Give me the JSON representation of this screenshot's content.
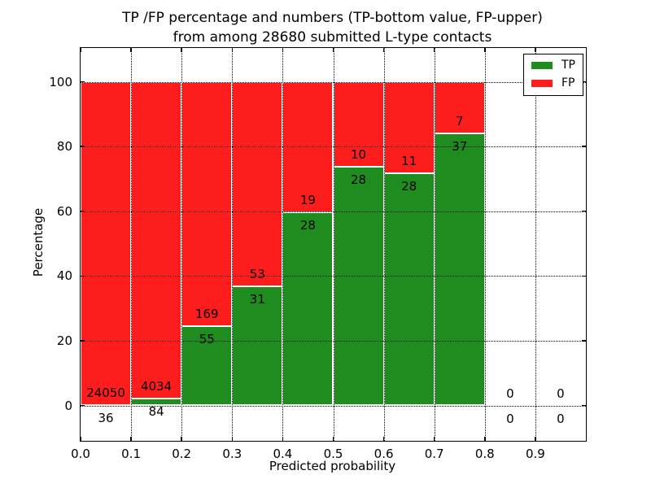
{
  "title": {
    "line1": "TP /FP percentage and numbers (TP-bottom value, FP-upper)",
    "line2": "from among 28680 submitted L-type contacts"
  },
  "axes": {
    "ylabel": "Percentage",
    "xlabel": "Predicted probability",
    "y_ticks": [
      0,
      20,
      40,
      60,
      80,
      100
    ],
    "x_tick_labels": [
      "0.0",
      "0.1",
      "0.2",
      "0.3",
      "0.4",
      "0.5",
      "0.6",
      "0.7",
      "0.8",
      "0.9"
    ]
  },
  "legend": {
    "items": [
      {
        "label": "TP",
        "color": "#1e8c1e"
      },
      {
        "label": "FP",
        "color": "#fd1d1d"
      }
    ]
  },
  "chart_data": {
    "type": "bar",
    "stacked": true,
    "title": "TP /FP percentage and numbers (TP-bottom value, FP-upper) from among 28680 submitted L-type contacts",
    "xlabel": "Predicted probability",
    "ylabel": "Percentage",
    "total_submitted": 28680,
    "bin_edges": [
      0.0,
      0.1,
      0.2,
      0.3,
      0.4,
      0.5,
      0.6,
      0.7,
      0.8,
      0.9,
      1.0
    ],
    "categories": [
      "0.0-0.1",
      "0.1-0.2",
      "0.2-0.3",
      "0.3-0.4",
      "0.4-0.5",
      "0.5-0.6",
      "0.6-0.7",
      "0.7-0.8",
      "0.8-0.9",
      "0.9-1.0"
    ],
    "series": [
      {
        "name": "TP",
        "color": "#1e8c1e",
        "counts": [
          36,
          84,
          55,
          31,
          28,
          28,
          28,
          37,
          0,
          0
        ],
        "percent": [
          0.15,
          2.04,
          24.55,
          36.9,
          59.57,
          73.68,
          71.79,
          84.09,
          0,
          0
        ]
      },
      {
        "name": "FP",
        "color": "#fd1d1d",
        "counts": [
          24050,
          4034,
          169,
          53,
          19,
          10,
          11,
          7,
          0,
          0
        ],
        "percent": [
          99.85,
          97.96,
          75.45,
          63.1,
          40.43,
          26.32,
          28.21,
          15.91,
          0,
          0
        ]
      }
    ],
    "y_ticks": [
      0,
      20,
      40,
      60,
      80,
      100
    ],
    "x_tick_labels": [
      "0.0",
      "0.1",
      "0.2",
      "0.3",
      "0.4",
      "0.5",
      "0.6",
      "0.7",
      "0.8",
      "0.9"
    ],
    "ylim": [
      -11,
      110
    ],
    "xlim": [
      0,
      1
    ],
    "grid": "dotted both axes",
    "legend_position": "upper right",
    "bar_edge_color": "#ffffff"
  }
}
